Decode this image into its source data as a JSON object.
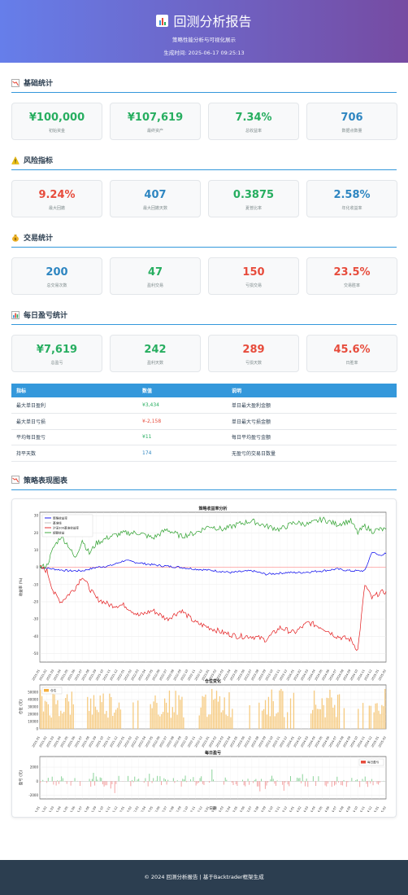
{
  "header": {
    "title": "回测分析报告",
    "subtitle": "策略性能分析与可视化展示",
    "time_label": "生成时间: 2025-06-17 09:25:13"
  },
  "sections": {
    "basic": {
      "title": "基础统计",
      "icon": "chart-down-icon"
    },
    "risk": {
      "title": "风险指标",
      "icon": "warning-icon"
    },
    "trade": {
      "title": "交易统计",
      "icon": "money-bag-icon"
    },
    "daily": {
      "title": "每日盈亏统计",
      "icon": "bar-chart-icon"
    },
    "charts": {
      "title": "策略表现图表",
      "icon": "chart-down-icon"
    }
  },
  "basic_cards": [
    {
      "value": "¥100,000",
      "label": "初始资金",
      "color": "green"
    },
    {
      "value": "¥107,619",
      "label": "最终资产",
      "color": "green"
    },
    {
      "value": "7.34%",
      "label": "总收益率",
      "color": "green"
    },
    {
      "value": "706",
      "label": "数据点数量",
      "color": "blue"
    }
  ],
  "risk_cards": [
    {
      "value": "9.24%",
      "label": "最大回撤",
      "color": "red"
    },
    {
      "value": "407",
      "label": "最大回撤天数",
      "color": "blue"
    },
    {
      "value": "0.3875",
      "label": "夏普比率",
      "color": "green"
    },
    {
      "value": "2.58%",
      "label": "年化收益率",
      "color": "blue"
    }
  ],
  "trade_cards": [
    {
      "value": "200",
      "label": "总交易次数",
      "color": "blue"
    },
    {
      "value": "47",
      "label": "盈利交易",
      "color": "green"
    },
    {
      "value": "150",
      "label": "亏损交易",
      "color": "red"
    },
    {
      "value": "23.5%",
      "label": "交易胜率",
      "color": "red"
    }
  ],
  "daily_cards": [
    {
      "value": "¥7,619",
      "label": "总盈亏",
      "color": "green"
    },
    {
      "value": "242",
      "label": "盈利天数",
      "color": "green"
    },
    {
      "value": "289",
      "label": "亏损天数",
      "color": "red"
    },
    {
      "value": "45.6%",
      "label": "日胜率",
      "color": "red"
    }
  ],
  "table": {
    "headers": [
      "指标",
      "数值",
      "说明"
    ],
    "rows": [
      {
        "name": "最大单日盈利",
        "value": "¥3,434",
        "desc": "单日最大盈利金额",
        "color": "green"
      },
      {
        "name": "最大单日亏损",
        "value": "¥-2,158",
        "desc": "单日最大亏损金额",
        "color": "red"
      },
      {
        "name": "平均每日盈亏",
        "value": "¥11",
        "desc": "每日平均盈亏金额",
        "color": "green"
      },
      {
        "name": "持平天数",
        "value": "174",
        "desc": "无盈亏的交易日数量",
        "color": "blue"
      }
    ]
  },
  "chart_data": [
    {
      "type": "line",
      "title": "策略收益率分析",
      "ylabel": "收益率 (%)",
      "ylim": [
        -55,
        32
      ],
      "y_ticks": [
        "30",
        "20",
        "10",
        "0",
        "-10",
        "-20",
        "-30",
        "-40",
        "-50"
      ],
      "x_ticks": [
        "2021-01",
        "2021-02",
        "2021-03",
        "2021-04",
        "2021-05",
        "2021-06",
        "2021-07",
        "2021-08",
        "2021-09",
        "2021-10",
        "2021-11",
        "2021-12",
        "2022-01",
        "2022-02",
        "2022-03",
        "2022-04",
        "2022-05",
        "2022-06",
        "2022-07",
        "2022-08",
        "2022-09",
        "2022-10",
        "2022-11",
        "2022-12",
        "2023-01",
        "2023-02",
        "2023-03",
        "2023-04",
        "2023-05",
        "2023-06",
        "2023-07",
        "2023-08",
        "2023-09",
        "2023-10",
        "2023-11",
        "2023-12",
        "2024-01",
        "2024-02",
        "2024-03",
        "2024-04",
        "2024-05",
        "2024-06",
        "2024-07",
        "2024-08",
        "2024-09",
        "2024-10",
        "2024-11",
        "2024-12",
        "2025-01",
        "2025-02"
      ],
      "legend": [
        "策略收益率",
        "基准线",
        "沪深300基准收益率",
        "超额收益"
      ],
      "legend_position": "top-left",
      "grid": true,
      "series": [
        {
          "name": "策略收益率",
          "color": "#0000ee",
          "x": [
            0,
            2,
            4,
            6,
            8,
            10,
            12,
            15,
            17,
            20,
            22,
            25,
            27,
            30,
            32,
            35,
            37,
            40,
            42,
            44,
            46,
            47,
            48,
            49
          ],
          "values": [
            0,
            -1,
            -2,
            -2,
            0,
            1,
            4,
            2,
            1,
            0,
            -1,
            -2,
            -3,
            -2,
            -4,
            -3,
            -3,
            -2,
            -1,
            -2,
            -2,
            9,
            7,
            8
          ]
        },
        {
          "name": "沪深300基准收益率",
          "color": "#e41a1c",
          "x": [
            0,
            1,
            2,
            3,
            5,
            6,
            7,
            8,
            10,
            12,
            14,
            16,
            18,
            20,
            22,
            24,
            26,
            28,
            30,
            32,
            34,
            36,
            38,
            40,
            42,
            44,
            45,
            46,
            47,
            48,
            49
          ],
          "values": [
            0,
            -2,
            -15,
            -20,
            -12,
            -5,
            -12,
            -18,
            -22,
            -22,
            -28,
            -25,
            -30,
            -25,
            -32,
            -35,
            -38,
            -40,
            -40,
            -42,
            -35,
            -38,
            -32,
            -35,
            -40,
            -42,
            -48,
            -10,
            -18,
            -15,
            -14
          ]
        },
        {
          "name": "超额收益",
          "color": "#2ca02c",
          "x": [
            0,
            1,
            2,
            3,
            4,
            5,
            6,
            7,
            8,
            10,
            12,
            14,
            16,
            18,
            20,
            22,
            24,
            26,
            28,
            30,
            32,
            34,
            36,
            38,
            40,
            42,
            44,
            45,
            46,
            47,
            48,
            49
          ],
          "values": [
            0,
            1,
            12,
            18,
            13,
            5,
            16,
            8,
            14,
            18,
            20,
            20,
            17,
            22,
            18,
            20,
            24,
            22,
            25,
            27,
            24,
            22,
            26,
            25,
            28,
            25,
            27,
            20,
            24,
            21,
            22,
            22
          ]
        }
      ]
    },
    {
      "type": "bar",
      "title": "仓位变化",
      "ylabel": "仓位 (元)",
      "ylim": [
        0,
        60000
      ],
      "y_ticks": [
        "50000",
        "40000",
        "30000",
        "20000",
        "10000",
        "0"
      ],
      "legend": [
        "仓位"
      ],
      "legend_position": "top-left",
      "series": [
        {
          "name": "仓位",
          "color": "#f5b041"
        }
      ]
    },
    {
      "type": "bar",
      "title": "每日盈亏",
      "ylabel": "盈亏 (元)",
      "xlabel": "日期",
      "ylim": [
        -2500,
        3500
      ],
      "y_ticks": [
        "2000",
        "0",
        "-2000"
      ],
      "legend": [
        "每日盈亏"
      ],
      "legend_position": "top-right",
      "series": [
        {
          "name": "每日盈亏",
          "color_pos": "#27ae60",
          "color_neg": "#e74c3c"
        }
      ]
    }
  ],
  "footer": {
    "text": "© 2024 回测分析报告 | 基于Backtrader框架生成"
  }
}
